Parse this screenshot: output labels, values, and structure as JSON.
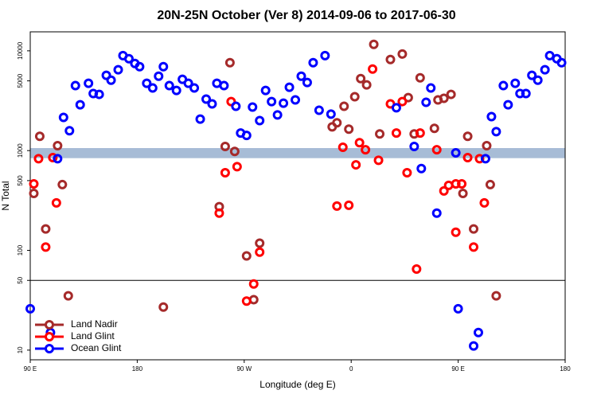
{
  "chart_data": {
    "type": "scatter",
    "title": "20N-25N October (Ver 8)   2014-09-06 to 2017-06-30",
    "xlabel": "Longitude (deg E)",
    "ylabel": "N Total",
    "log_y": true,
    "xlim": [
      90,
      540
    ],
    "ylim": [
      8,
      15500
    ],
    "xticks": [
      {
        "value": 90,
        "label": "90 E"
      },
      180,
      {
        "value": 270,
        "label": "90 W"
      },
      {
        "value": 360,
        "label": "0"
      },
      {
        "value": 450,
        "label": "90 E"
      },
      {
        "value": 540,
        "label": "180"
      }
    ],
    "yticks": [
      10,
      50,
      100,
      500,
      1000,
      5000,
      10000
    ],
    "hline": 50,
    "band": [
      840,
      1060
    ],
    "band_color": "#a7bcd6",
    "legend": "lower left",
    "series": [
      {
        "name": "Land Nadir",
        "color": "#a52a2a",
        "x": [
          93,
          98,
          103,
          113,
          117,
          122,
          202,
          249,
          254,
          258,
          262,
          272,
          278,
          283,
          344,
          348,
          354,
          358,
          363,
          368,
          373,
          379,
          384,
          393,
          403,
          408,
          413,
          418,
          430,
          433,
          438,
          444,
          454,
          458,
          463,
          474,
          477,
          482
        ],
        "values": [
          372,
          1390,
          164,
          1120,
          456,
          35,
          27,
          274,
          1100,
          7600,
          980,
          88,
          32,
          118,
          1730,
          1900,
          2780,
          1640,
          3470,
          5270,
          4560,
          11600,
          1470,
          8190,
          9290,
          3400,
          1470,
          5370,
          1670,
          3220,
          3340,
          3660,
          372,
          1390,
          164,
          1120,
          456,
          35
        ]
      },
      {
        "name": "Land Glint",
        "color": "#ff0000",
        "x": [
          93,
          97,
          103,
          109,
          112,
          249,
          254,
          259,
          264,
          272,
          278,
          283,
          348,
          353,
          358,
          364,
          367,
          372,
          378,
          383,
          393,
          398,
          403,
          407,
          415,
          418,
          432,
          438,
          442,
          448,
          453,
          448,
          458,
          463,
          468,
          472
        ],
        "values": [
          464,
          830,
          108,
          850,
          299,
          236,
          600,
          3100,
          690,
          31,
          46,
          96,
          278,
          1080,
          283,
          720,
          1200,
          1020,
          6560,
          800,
          2940,
          1500,
          3100,
          600,
          65,
          1500,
          1020,
          394,
          448,
          464,
          464,
          152,
          850,
          108,
          830,
          299
        ]
      },
      {
        "name": "Ocean Glint",
        "color": "#0000ff",
        "x": [
          90,
          107,
          113,
          118,
          123,
          128,
          132,
          139,
          143,
          148,
          154,
          158,
          164,
          168,
          173,
          178,
          182,
          188,
          193,
          198,
          202,
          207,
          213,
          218,
          223,
          228,
          233,
          238,
          243,
          247,
          253,
          263,
          267,
          272,
          277,
          283,
          288,
          293,
          298,
          303,
          308,
          313,
          318,
          323,
          328,
          333,
          338,
          343,
          398,
          413,
          419,
          423,
          427,
          432,
          448,
          450,
          463,
          467,
          473,
          478,
          482,
          488,
          492,
          498,
          502,
          507,
          512,
          517,
          523,
          527,
          533,
          537
        ],
        "values": [
          26,
          15,
          830,
          2150,
          1580,
          4480,
          2880,
          4730,
          3730,
          3660,
          5680,
          5080,
          6460,
          8960,
          8330,
          7470,
          6940,
          4730,
          4240,
          5570,
          6940,
          4480,
          4010,
          5180,
          4730,
          4240,
          2070,
          3280,
          2940,
          4730,
          4480,
          2780,
          1500,
          1420,
          2730,
          2000,
          4010,
          3100,
          2280,
          2990,
          4310,
          3220,
          5570,
          4820,
          7600,
          2540,
          8960,
          2320,
          2690,
          1100,
          660,
          3050,
          4240,
          236,
          950,
          26,
          11,
          15,
          830,
          2190,
          1550,
          4480,
          2880,
          4730,
          3730,
          3730,
          5680,
          5080,
          6460,
          8960,
          8330,
          7600
        ]
      }
    ]
  }
}
